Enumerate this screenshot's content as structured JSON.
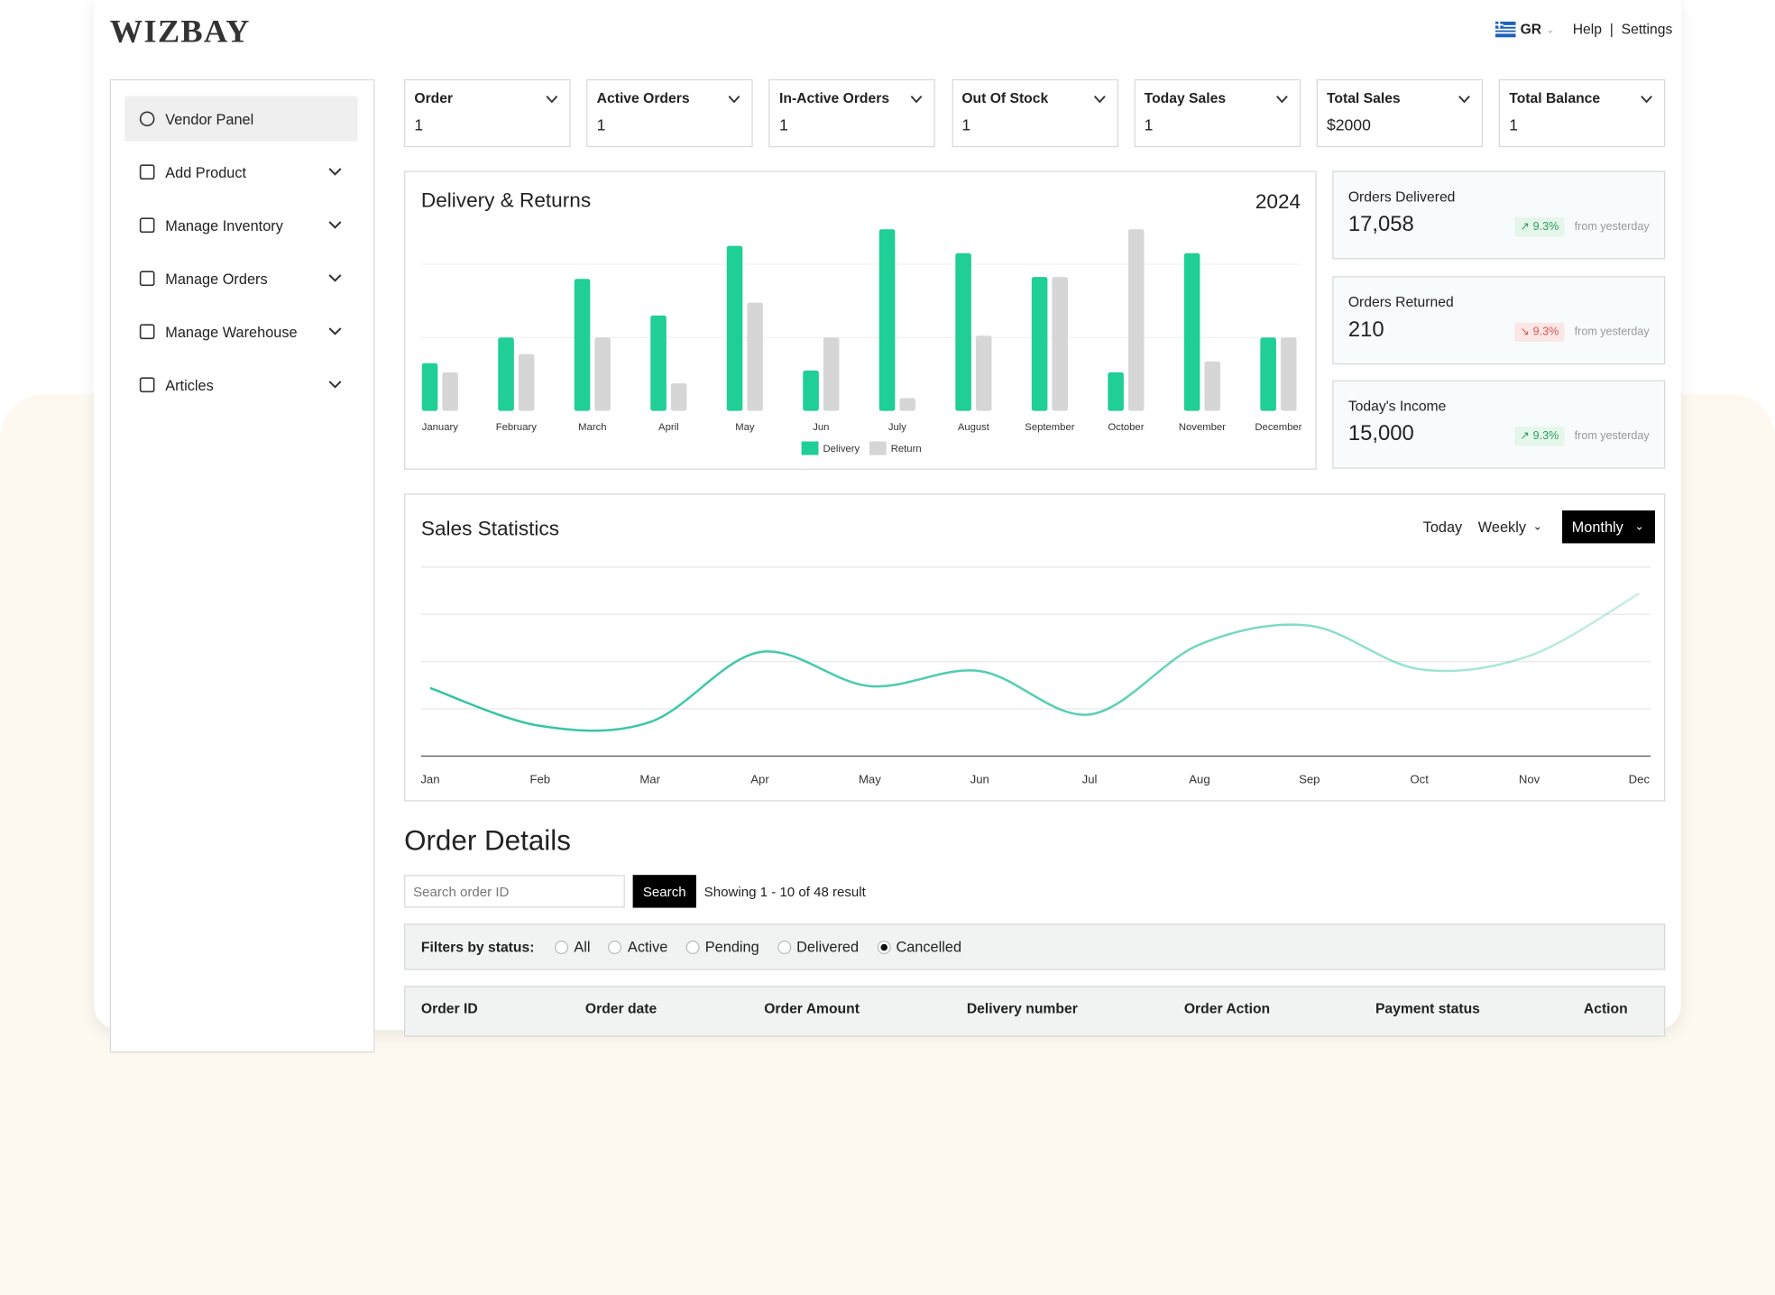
{
  "header": {
    "logo": "WIZBAY",
    "language": "GR",
    "links": [
      "Help",
      "Settings"
    ]
  },
  "sidebar": {
    "items": [
      "Vendor Panel",
      "Add Product",
      "Manage Inventory",
      "Manage Orders",
      "Manage Warehouse",
      "Articles"
    ]
  },
  "stats": [
    {
      "label": "Order",
      "value": "1"
    },
    {
      "label": "Active Orders",
      "value": "1"
    },
    {
      "label": "In-Active Orders",
      "value": "1"
    },
    {
      "label": "Out Of Stock",
      "value": "1"
    },
    {
      "label": "Today Sales",
      "value": "1"
    },
    {
      "label": "Total Sales",
      "value": "$2000"
    },
    {
      "label": "Total Balance",
      "value": "1"
    }
  ],
  "chart_data": [
    {
      "type": "bar",
      "title": "Delivery & Returns",
      "subtitle": "2024",
      "categories": [
        "January",
        "February",
        "March",
        "April",
        "May",
        "Jun",
        "July",
        "August",
        "September",
        "October",
        "November",
        "December"
      ],
      "series": [
        {
          "name": "Delivery",
          "color": "#1fcf95",
          "values": [
            26,
            40,
            72,
            52,
            90,
            22,
            99,
            86,
            73,
            21,
            86,
            40
          ]
        },
        {
          "name": "Return",
          "color": "#d6d6d6",
          "values": [
            21,
            31,
            40,
            15,
            59,
            40,
            7,
            41,
            73,
            99,
            27,
            40
          ]
        }
      ],
      "ylim": [
        0,
        100
      ],
      "legend": "bottom"
    },
    {
      "type": "line",
      "title": "Sales Statistics",
      "categories": [
        "Jan",
        "Feb",
        "Mar",
        "Apr",
        "May",
        "Jun",
        "Jul",
        "Aug",
        "Sep",
        "Oct",
        "Nov",
        "Dec"
      ],
      "values": [
        36,
        16,
        18,
        55,
        37,
        45,
        22,
        59,
        69,
        46,
        53,
        86
      ],
      "color": "#2ec4a0",
      "ylim": [
        0,
        100
      ],
      "grid": true
    }
  ],
  "summary_cards": [
    {
      "label": "Orders Delivered",
      "value": "17,058",
      "change": "9.3%",
      "trend": "up",
      "note": "from yesterday"
    },
    {
      "label": "Orders Returned",
      "value": "210",
      "change": "9.3%",
      "trend": "down",
      "note": "from yesterday"
    },
    {
      "label": "Today's Income",
      "value": "15,000",
      "change": "9.3%",
      "trend": "up",
      "note": "from yesterday"
    }
  ],
  "sales_controls": [
    "Today",
    "Weekly",
    "Monthly"
  ],
  "order_details": {
    "title": "Order Details",
    "search_placeholder": "Search order ID",
    "search_button": "Search",
    "result_text": "Showing 1 - 10 of 48 result",
    "filter_label": "Filters by status:",
    "filters": [
      "All",
      "Active",
      "Pending",
      "Delivered",
      "Cancelled"
    ],
    "selected_filter": 4,
    "columns": [
      "Order ID",
      "Order date",
      "Order Amount",
      "Delivery number",
      "Order Action",
      "Payment status",
      "Action"
    ]
  }
}
